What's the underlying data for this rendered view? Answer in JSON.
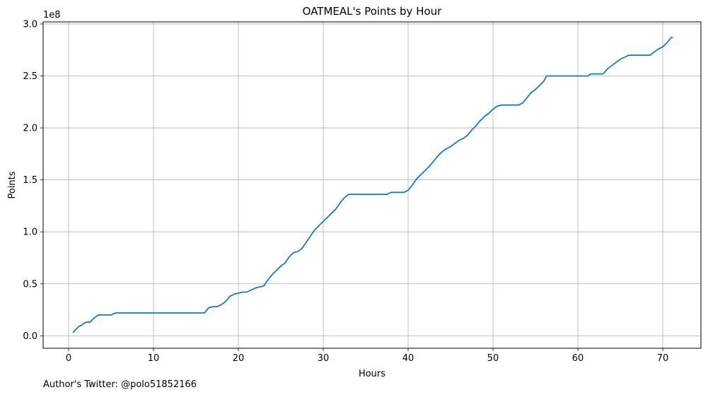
{
  "chart_data": {
    "type": "line",
    "title": "OATMEAL's Points by Hour",
    "xlabel": "Hours",
    "ylabel": "Points",
    "y_offset_label": "1e8",
    "xlim": [
      -3,
      74.5
    ],
    "ylim": [
      -0.12,
      3.02
    ],
    "y_scale_note": "values in units of 1e8 points",
    "xticks": [
      0,
      10,
      20,
      30,
      40,
      50,
      60,
      70
    ],
    "yticks": [
      "0.0",
      "0.5",
      "1.0",
      "1.5",
      "2.0",
      "2.5",
      "3.0"
    ],
    "grid": true,
    "line_color": "#1f77b4",
    "series": [
      {
        "x": [
          0.5,
          1.2,
          1.5,
          2.0,
          2.5,
          3.0,
          3.5,
          4.0,
          5.0,
          5.5,
          6.0,
          10.0,
          15.0,
          16.0,
          16.5,
          17.0,
          17.5,
          18.0,
          18.5,
          19.0,
          19.5,
          20.0,
          20.5,
          21.0,
          21.5,
          22.0,
          22.5,
          23.0,
          23.5,
          24.0,
          24.5,
          25.0,
          25.5,
          26.0,
          26.5,
          27.0,
          27.5,
          28.0,
          28.5,
          29.0,
          29.5,
          30.0,
          30.5,
          31.0,
          31.5,
          32.0,
          32.5,
          33.0,
          35.0,
          37.5,
          38.0,
          39.5,
          40.0,
          40.5,
          41.0,
          41.5,
          42.0,
          42.5,
          43.0,
          43.5,
          44.0,
          44.5,
          45.0,
          45.5,
          46.0,
          46.5,
          47.0,
          47.5,
          48.0,
          48.5,
          49.0,
          49.5,
          50.0,
          50.5,
          51.0,
          53.0,
          53.5,
          54.0,
          54.5,
          55.0,
          55.5,
          56.0,
          56.3,
          60.0,
          61.2,
          61.5,
          63.0,
          63.5,
          64.0,
          64.5,
          65.0,
          65.5,
          66.0,
          66.5,
          67.0,
          68.5,
          69.0,
          69.5,
          70.0,
          70.5,
          71.0,
          71.2
        ],
        "values": [
          0.03,
          0.09,
          0.1,
          0.13,
          0.13,
          0.17,
          0.2,
          0.2,
          0.2,
          0.22,
          0.22,
          0.22,
          0.22,
          0.22,
          0.27,
          0.28,
          0.28,
          0.3,
          0.33,
          0.38,
          0.4,
          0.41,
          0.42,
          0.42,
          0.44,
          0.46,
          0.47,
          0.48,
          0.54,
          0.59,
          0.63,
          0.67,
          0.7,
          0.76,
          0.8,
          0.81,
          0.84,
          0.9,
          0.96,
          1.02,
          1.06,
          1.1,
          1.14,
          1.18,
          1.22,
          1.28,
          1.33,
          1.36,
          1.36,
          1.36,
          1.38,
          1.38,
          1.4,
          1.45,
          1.51,
          1.55,
          1.59,
          1.63,
          1.68,
          1.73,
          1.77,
          1.8,
          1.82,
          1.85,
          1.88,
          1.9,
          1.93,
          1.98,
          2.02,
          2.07,
          2.11,
          2.14,
          2.18,
          2.21,
          2.22,
          2.22,
          2.24,
          2.29,
          2.34,
          2.37,
          2.41,
          2.45,
          2.5,
          2.5,
          2.5,
          2.52,
          2.52,
          2.57,
          2.6,
          2.63,
          2.66,
          2.68,
          2.7,
          2.7,
          2.7,
          2.7,
          2.73,
          2.76,
          2.78,
          2.82,
          2.87,
          2.87
        ]
      }
    ]
  },
  "footer": {
    "text": "Author's Twitter: @polo51852166"
  }
}
